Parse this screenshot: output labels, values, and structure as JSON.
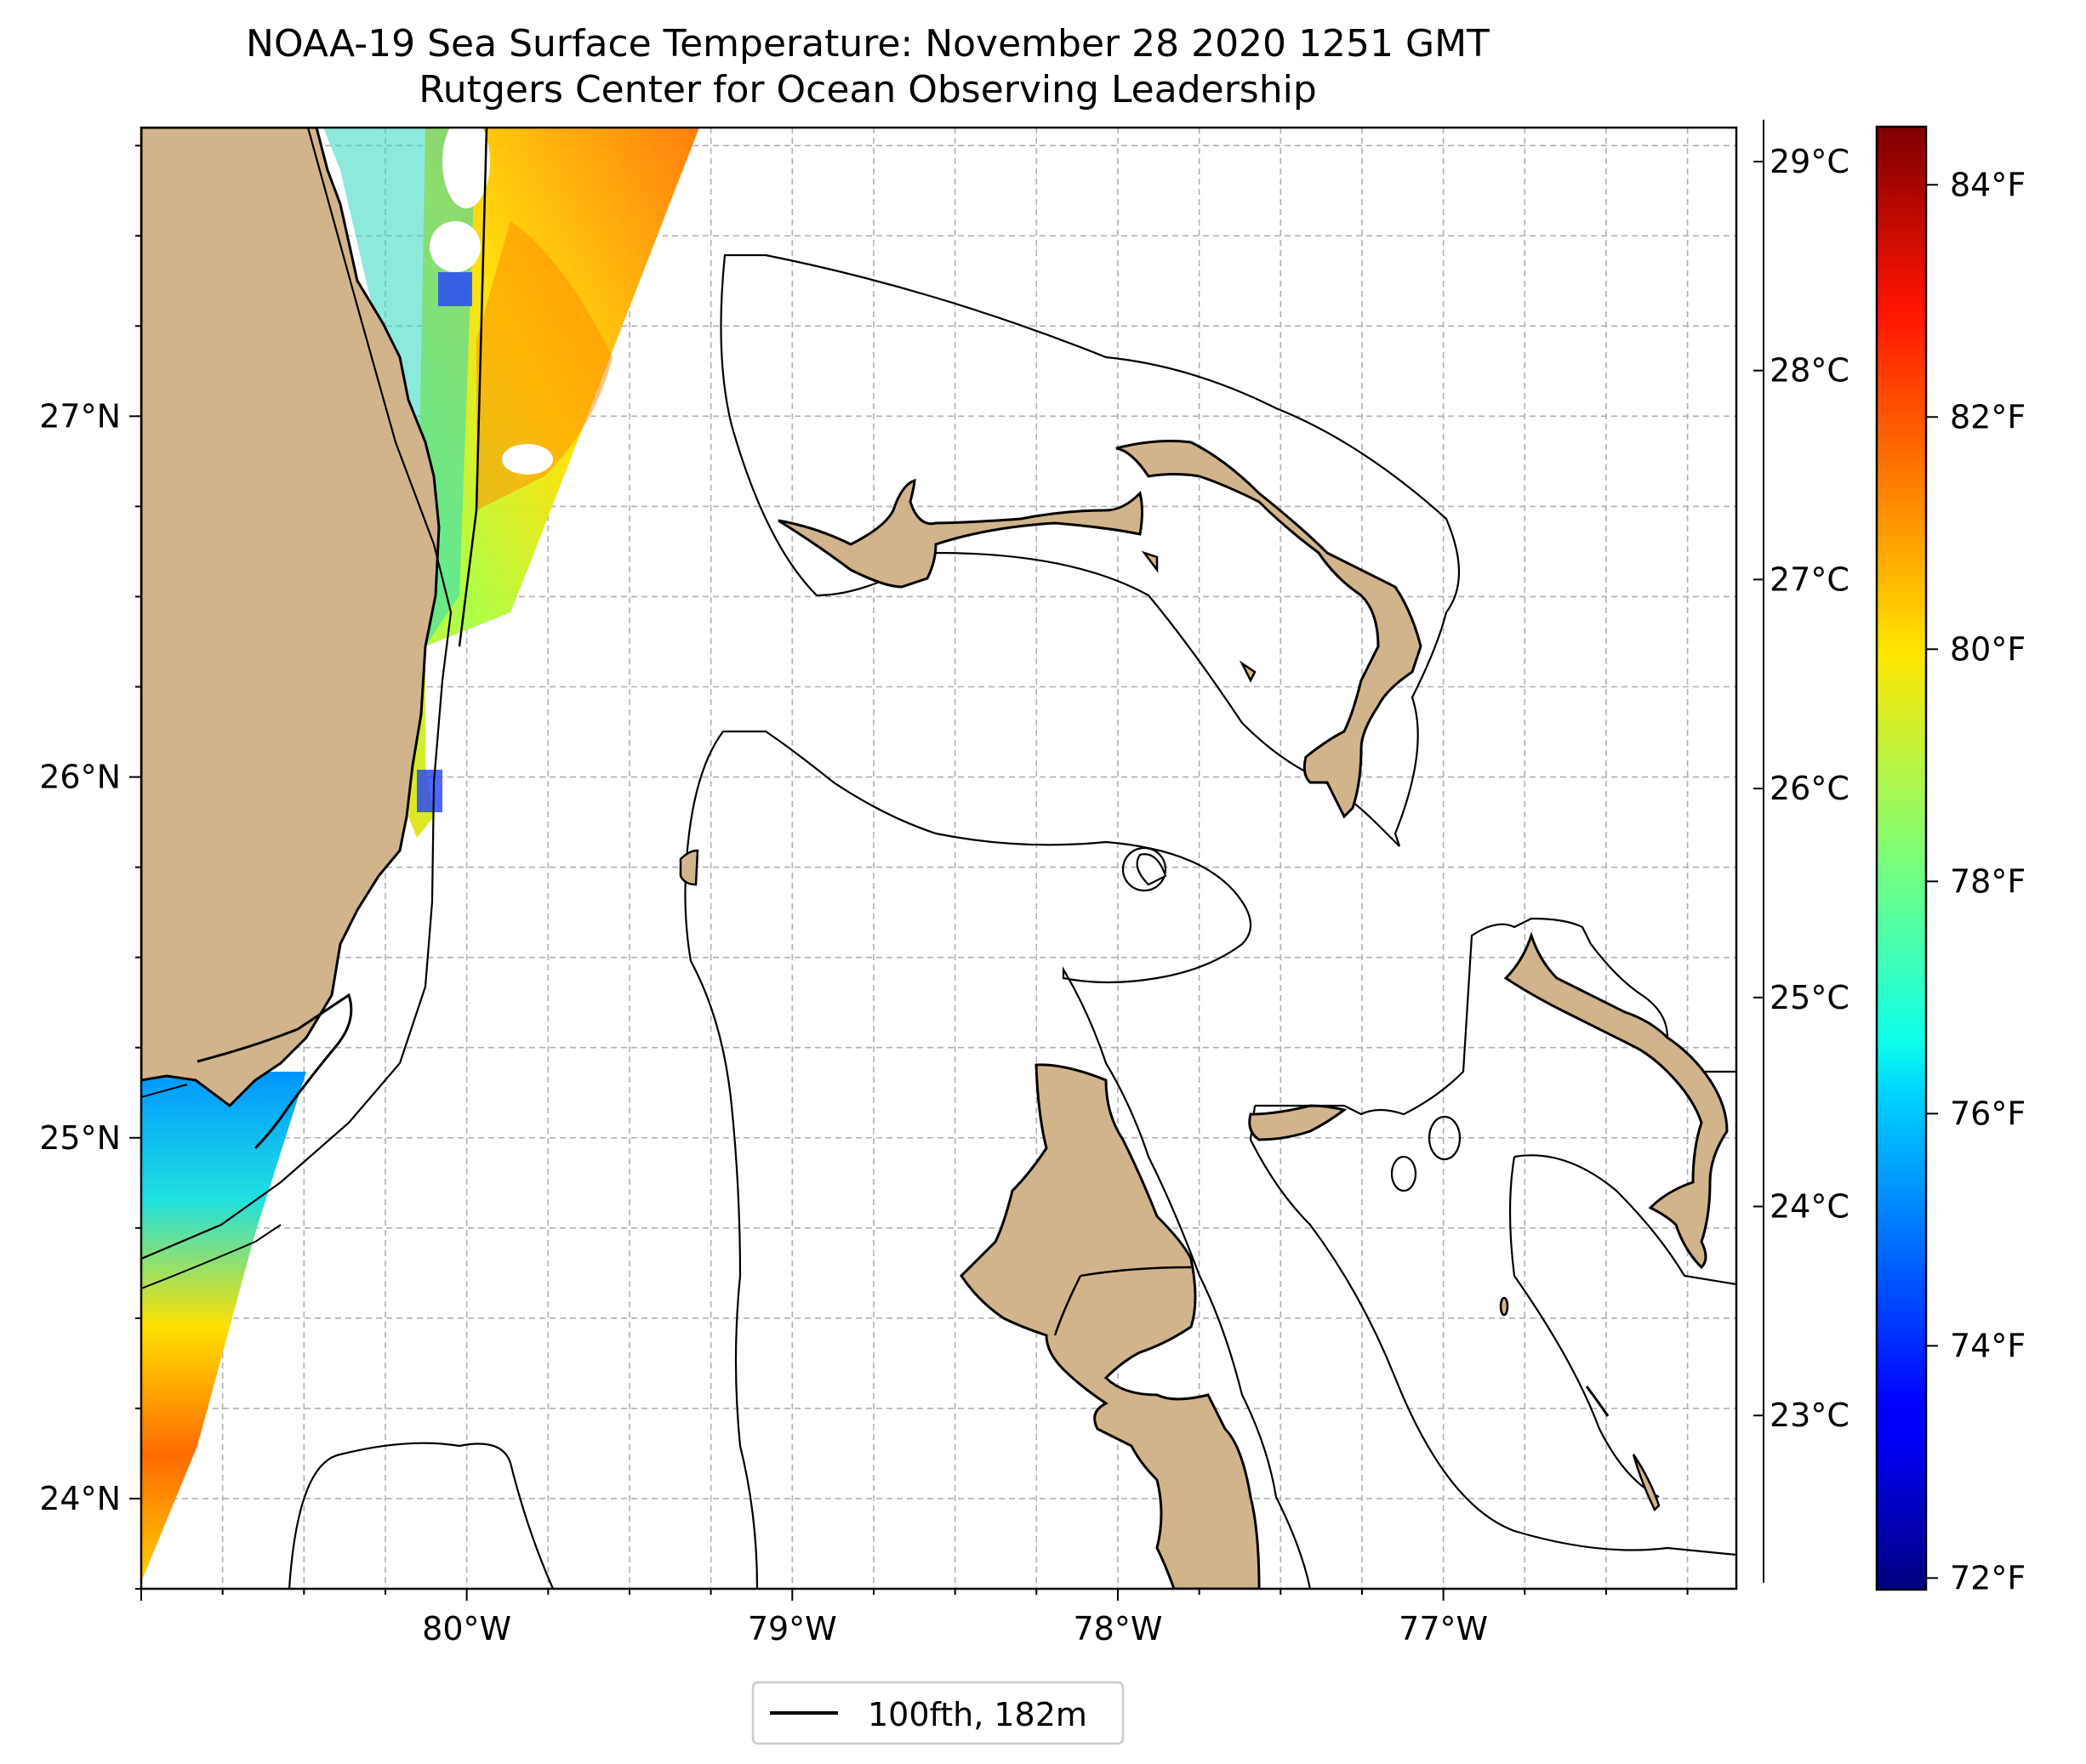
{
  "title": "NOAA-19 Sea Surface Temperature: November 28 2020 1251 GMT",
  "subtitle": "Rutgers Center for Ocean Observing Leadership",
  "map": {
    "lon_range": [
      -81.0,
      -76.1
    ],
    "lat_range": [
      23.75,
      27.8
    ],
    "lon_ticks": [
      {
        "value": -80,
        "label": "80°W"
      },
      {
        "value": -79,
        "label": "79°W"
      },
      {
        "value": -78,
        "label": "78°W"
      },
      {
        "value": -77,
        "label": "77°W"
      }
    ],
    "lat_ticks": [
      {
        "value": 24,
        "label": "24°N"
      },
      {
        "value": 25,
        "label": "25°N"
      },
      {
        "value": 26,
        "label": "26°N"
      },
      {
        "value": 27,
        "label": "27°N"
      }
    ],
    "grid": true,
    "land_color": "#d2b48c"
  },
  "colorbar": {
    "f_range": [
      71.9,
      84.5
    ],
    "fahrenheit_ticks": [
      {
        "value": 72,
        "label": "72°F"
      },
      {
        "value": 74,
        "label": "74°F"
      },
      {
        "value": 76,
        "label": "76°F"
      },
      {
        "value": 78,
        "label": "78°F"
      },
      {
        "value": 80,
        "label": "80°F"
      },
      {
        "value": 82,
        "label": "82°F"
      },
      {
        "value": 84,
        "label": "84°F"
      }
    ],
    "celsius_ticks": [
      {
        "value": 23,
        "label": "23°C"
      },
      {
        "value": 24,
        "label": "24°C"
      },
      {
        "value": 25,
        "label": "25°C"
      },
      {
        "value": 26,
        "label": "26°C"
      },
      {
        "value": 27,
        "label": "27°C"
      },
      {
        "value": 28,
        "label": "28°C"
      },
      {
        "value": 29,
        "label": "29°C"
      }
    ],
    "colormap": "jet"
  },
  "legend": {
    "placement": "bottom-center",
    "entries": [
      {
        "label": "100fth, 182m",
        "color": "#000000"
      }
    ]
  }
}
